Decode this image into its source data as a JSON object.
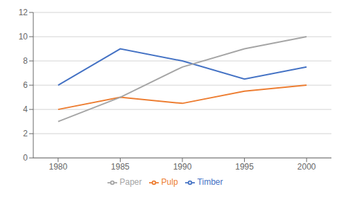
{
  "chart_data": {
    "type": "line",
    "x": [
      1980,
      1985,
      1990,
      1995,
      2000
    ],
    "series": [
      {
        "name": "Timber",
        "color": "#4472C4",
        "values": [
          6,
          9,
          8,
          6.5,
          7.5
        ]
      },
      {
        "name": "Pulp",
        "color": "#ED7D31",
        "values": [
          4,
          5,
          4.5,
          5.5,
          6
        ]
      },
      {
        "name": "Paper",
        "color": "#A5A5A5",
        "values": [
          3,
          5,
          7.5,
          9,
          10
        ]
      }
    ],
    "xlim": [
      1978,
      2002
    ],
    "xticks": [
      1980,
      1985,
      1990,
      1995,
      2000
    ],
    "ylim": [
      0,
      12
    ],
    "yticks": [
      0,
      2,
      4,
      6,
      8,
      10,
      12
    ],
    "grid": "y",
    "legend": "bottom"
  }
}
